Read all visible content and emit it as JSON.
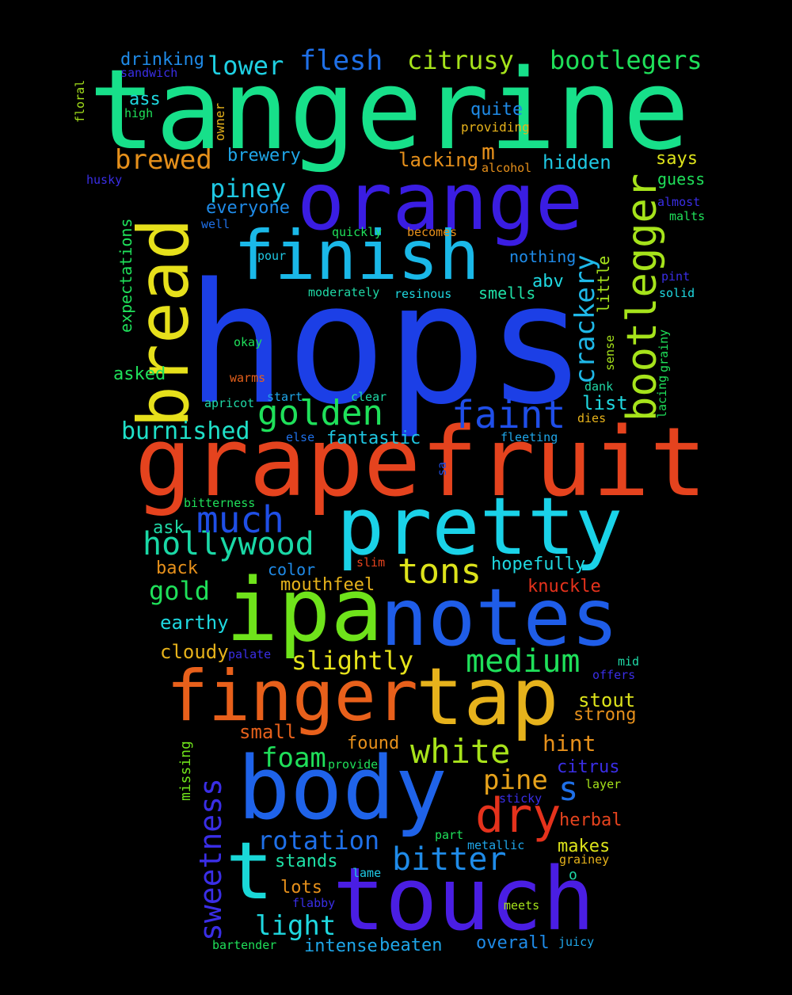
{
  "word_cloud": {
    "background": "#000000",
    "words": [
      {
        "text": "hops",
        "color": "#1c3fe6"
      },
      {
        "text": "tangerine",
        "color": "#17e08a"
      },
      {
        "text": "grapefruit",
        "color": "#e5431e"
      },
      {
        "text": "ipa",
        "color": "#6fe31b"
      },
      {
        "text": "notes",
        "color": "#1f5de8"
      },
      {
        "text": "touch",
        "color": "#4a1ee3"
      },
      {
        "text": "orange",
        "color": "#3a1de2"
      },
      {
        "text": "pretty",
        "color": "#1ad2e8"
      },
      {
        "text": "body",
        "color": "#1f63e9"
      },
      {
        "text": "tap",
        "color": "#e6b21c"
      },
      {
        "text": "finger",
        "color": "#e8601b"
      },
      {
        "text": "finish",
        "color": "#1ab8e8"
      },
      {
        "text": "bread",
        "color": "#e6e01b"
      },
      {
        "text": "t",
        "color": "#1ad8d8"
      },
      {
        "text": "bootlegger",
        "color": "#a6e31b"
      },
      {
        "text": "dry",
        "color": "#e5321c"
      },
      {
        "text": "golden",
        "color": "#1fe05a"
      },
      {
        "text": "faint",
        "color": "#1f4ee8"
      },
      {
        "text": "hollywood",
        "color": "#1ad8a6"
      },
      {
        "text": "much",
        "color": "#1f4fe6"
      },
      {
        "text": "white",
        "color": "#a8e31b"
      },
      {
        "text": "tons",
        "color": "#dde31b"
      },
      {
        "text": "medium",
        "color": "#1fe05a"
      },
      {
        "text": "bitter",
        "color": "#1f8be8"
      },
      {
        "text": "sweetness",
        "color": "#3a2ee6"
      },
      {
        "text": "crackery",
        "color": "#1fb8e8"
      },
      {
        "text": "flesh",
        "color": "#1f70e8"
      },
      {
        "text": "citrusy",
        "color": "#a6e31b"
      },
      {
        "text": "bootlegers",
        "color": "#1fe05a"
      },
      {
        "text": "lower",
        "color": "#1fd0e3"
      },
      {
        "text": "brewed",
        "color": "#e6901b"
      },
      {
        "text": "piney",
        "color": "#1fc8e3"
      },
      {
        "text": "burnished",
        "color": "#1fe0c8"
      },
      {
        "text": "gold",
        "color": "#1fe05a"
      },
      {
        "text": "slightly",
        "color": "#e6e31b"
      },
      {
        "text": "pine",
        "color": "#e6a21b"
      },
      {
        "text": "rotation",
        "color": "#1f70e8"
      },
      {
        "text": "light",
        "color": "#1fd8e0"
      },
      {
        "text": "foam",
        "color": "#1fe05a"
      },
      {
        "text": "s",
        "color": "#1f70e8"
      },
      {
        "text": "m",
        "color": "#e6901b"
      },
      {
        "text": "hint",
        "color": "#e6901b"
      },
      {
        "text": "drinking",
        "color": "#1f8be8"
      },
      {
        "text": "ass",
        "color": "#1fd8e0"
      },
      {
        "text": "brewery",
        "color": "#1fa6e8"
      },
      {
        "text": "everyone",
        "color": "#1f8be8"
      },
      {
        "text": "lacking",
        "color": "#e6901b"
      },
      {
        "text": "quite",
        "color": "#1f8be8"
      },
      {
        "text": "hidden",
        "color": "#1fc8e3"
      },
      {
        "text": "says",
        "color": "#dde31b"
      },
      {
        "text": "guess",
        "color": "#1fe05a"
      },
      {
        "text": "abv",
        "color": "#1fd8e0"
      },
      {
        "text": "smells",
        "color": "#1fe0a6"
      },
      {
        "text": "list",
        "color": "#1fd8e0"
      },
      {
        "text": "nothing",
        "color": "#1f8be8"
      },
      {
        "text": "little",
        "color": "#a6e31b"
      },
      {
        "text": "expectations",
        "color": "#1fe05a"
      },
      {
        "text": "asked",
        "color": "#1fe05a"
      },
      {
        "text": "fantastic",
        "color": "#1fc8e3"
      },
      {
        "text": "ask",
        "color": "#1fd8a6"
      },
      {
        "text": "back",
        "color": "#e6901b"
      },
      {
        "text": "color",
        "color": "#1f8be8"
      },
      {
        "text": "mouthfeel",
        "color": "#e6b21b"
      },
      {
        "text": "hopefully",
        "color": "#1fd8e0"
      },
      {
        "text": "knuckle",
        "color": "#e5321c"
      },
      {
        "text": "earthy",
        "color": "#1fd8e0"
      },
      {
        "text": "cloudy",
        "color": "#e6b21b"
      },
      {
        "text": "stout",
        "color": "#dde31b"
      },
      {
        "text": "strong",
        "color": "#e6901b"
      },
      {
        "text": "small",
        "color": "#e5601b"
      },
      {
        "text": "found",
        "color": "#e6901b"
      },
      {
        "text": "citrus",
        "color": "#3a2ee6"
      },
      {
        "text": "herbal",
        "color": "#e5431e"
      },
      {
        "text": "makes",
        "color": "#dde31b"
      },
      {
        "text": "stands",
        "color": "#1fe0a6"
      },
      {
        "text": "lots",
        "color": "#e6901b"
      },
      {
        "text": "beaten",
        "color": "#1fa6e8"
      },
      {
        "text": "intense",
        "color": "#1fa6e8"
      },
      {
        "text": "overall",
        "color": "#1f8be8"
      },
      {
        "text": "missing",
        "color": "#6fe31b"
      },
      {
        "text": "o",
        "color": "#1fd8a6"
      },
      {
        "text": "sandwich",
        "color": "#3a2ee6"
      },
      {
        "text": "floral",
        "color": "#a6e31b"
      },
      {
        "text": "high",
        "color": "#1fe05a"
      },
      {
        "text": "owner",
        "color": "#e6b21b"
      },
      {
        "text": "providing",
        "color": "#e6b21b"
      },
      {
        "text": "alcohol",
        "color": "#e6901b"
      },
      {
        "text": "husky",
        "color": "#3a2ee6"
      },
      {
        "text": "well",
        "color": "#1f70e8"
      },
      {
        "text": "almost",
        "color": "#3a2ee6"
      },
      {
        "text": "malts",
        "color": "#1fe05a"
      },
      {
        "text": "quickly",
        "color": "#1fe05a"
      },
      {
        "text": "becomes",
        "color": "#e6901b"
      },
      {
        "text": "pour",
        "color": "#1fc8e3"
      },
      {
        "text": "pint",
        "color": "#3a2ee6"
      },
      {
        "text": "moderately",
        "color": "#1fd8a6"
      },
      {
        "text": "resinous",
        "color": "#1fd8e0"
      },
      {
        "text": "solid",
        "color": "#1fd8e0"
      },
      {
        "text": "grainy",
        "color": "#1fe05a"
      },
      {
        "text": "lacing",
        "color": "#1fe05a"
      },
      {
        "text": "sense",
        "color": "#a6e31b"
      },
      {
        "text": "okay",
        "color": "#1fe05a"
      },
      {
        "text": "warms",
        "color": "#e5601b"
      },
      {
        "text": "dank",
        "color": "#1fd8a6"
      },
      {
        "text": "start",
        "color": "#1fa6e8"
      },
      {
        "text": "clear",
        "color": "#1fd8a6"
      },
      {
        "text": "apricot",
        "color": "#1fd8a6"
      },
      {
        "text": "dies",
        "color": "#e6b21b"
      },
      {
        "text": "else",
        "color": "#1f70e8"
      },
      {
        "text": "fleeting",
        "color": "#1fa6e8"
      },
      {
        "text": "sa",
        "color": "#1f4fe6"
      },
      {
        "text": "bitterness",
        "color": "#1fe05a"
      },
      {
        "text": "slim",
        "color": "#e5431e"
      },
      {
        "text": "palate",
        "color": "#3a2ee6"
      },
      {
        "text": "mid",
        "color": "#1fd8a6"
      },
      {
        "text": "offers",
        "color": "#3a2ee6"
      },
      {
        "text": "provide",
        "color": "#1fe05a"
      },
      {
        "text": "layer",
        "color": "#a6e31b"
      },
      {
        "text": "sticky",
        "color": "#3a2ee6"
      },
      {
        "text": "part",
        "color": "#1fe05a"
      },
      {
        "text": "metallic",
        "color": "#1fa6e8"
      },
      {
        "text": "grainey",
        "color": "#e6b21b"
      },
      {
        "text": "lame",
        "color": "#1fc8e3"
      },
      {
        "text": "flabby",
        "color": "#3a2ee6"
      },
      {
        "text": "meets",
        "color": "#a6e31b"
      },
      {
        "text": "bartender",
        "color": "#1fe05a"
      },
      {
        "text": "juicy",
        "color": "#1fa6e8"
      }
    ]
  }
}
